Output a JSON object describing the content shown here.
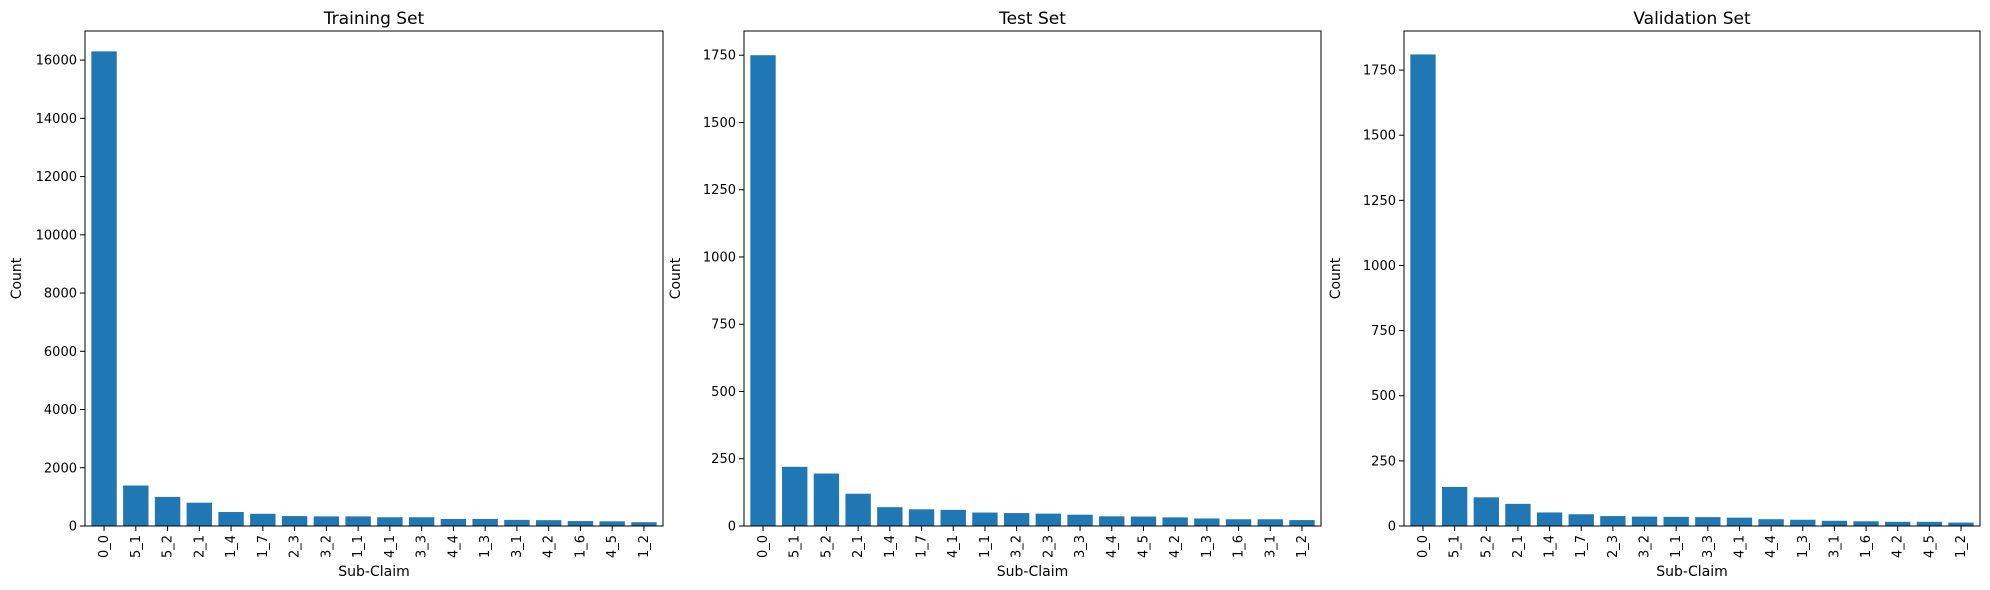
{
  "chart_data": [
    {
      "type": "bar",
      "title": "Training Set",
      "xlabel": "Sub-Claim",
      "ylabel": "Count",
      "ylim": [
        0,
        17000
      ],
      "yticks": [
        0,
        2000,
        4000,
        6000,
        8000,
        10000,
        12000,
        14000,
        16000
      ],
      "categories": [
        "0_0",
        "5_1",
        "5_2",
        "2_1",
        "1_4",
        "1_7",
        "2_3",
        "3_2",
        "1_1",
        "4_1",
        "3_3",
        "4_4",
        "1_3",
        "3_1",
        "4_2",
        "1_6",
        "4_5",
        "1_2"
      ],
      "values": [
        16300,
        1390,
        1000,
        800,
        480,
        420,
        340,
        330,
        330,
        300,
        300,
        240,
        240,
        210,
        200,
        170,
        160,
        130
      ],
      "color": "#1f77b4"
    },
    {
      "type": "bar",
      "title": "Test Set",
      "xlabel": "Sub-Claim",
      "ylabel": "Count",
      "ylim": [
        0,
        1840
      ],
      "yticks": [
        0,
        250,
        500,
        750,
        1000,
        1250,
        1500,
        1750
      ],
      "categories": [
        "0_0",
        "5_1",
        "5_2",
        "2_1",
        "1_4",
        "1_7",
        "4_1",
        "1_1",
        "3_2",
        "2_3",
        "3_3",
        "4_4",
        "4_5",
        "4_2",
        "1_3",
        "1_6",
        "3_1",
        "1_2"
      ],
      "values": [
        1750,
        220,
        195,
        120,
        70,
        62,
        60,
        50,
        48,
        46,
        42,
        36,
        35,
        32,
        28,
        25,
        25,
        22
      ],
      "color": "#1f77b4"
    },
    {
      "type": "bar",
      "title": "Validation Set",
      "xlabel": "Sub-Claim",
      "ylabel": "Count",
      "ylim": [
        0,
        1900
      ],
      "yticks": [
        0,
        250,
        500,
        750,
        1000,
        1250,
        1500,
        1750
      ],
      "categories": [
        "0_0",
        "5_1",
        "5_2",
        "2_1",
        "1_4",
        "1_7",
        "2_3",
        "3_2",
        "1_1",
        "3_3",
        "4_1",
        "4_4",
        "1_3",
        "3_1",
        "1_6",
        "4_2",
        "4_5",
        "1_2"
      ],
      "values": [
        1810,
        150,
        110,
        85,
        52,
        45,
        38,
        36,
        35,
        34,
        32,
        26,
        24,
        20,
        18,
        16,
        16,
        13
      ],
      "color": "#1f77b4"
    }
  ]
}
